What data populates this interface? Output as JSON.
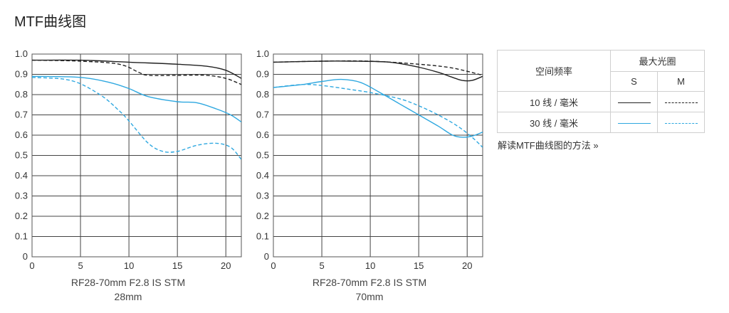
{
  "page": {
    "title": "MTF曲线图"
  },
  "colors": {
    "line_10": "#222222",
    "line_30": "#2fa8e0",
    "frame": "#555555",
    "grid": "#444444"
  },
  "legend": {
    "spatial_frequency_label": "空间频率",
    "aperture_label": "最大光圈",
    "col_s": "S",
    "col_m": "M",
    "row_10": "10 线 / 毫米",
    "row_30": "30 线 / 毫米"
  },
  "help_link": "解读MTF曲线图的方法 »",
  "chart_data": [
    {
      "type": "line",
      "caption_line1": "RF28-70mm F2.8 IS STM",
      "caption_line2": "28mm",
      "xlim": [
        0,
        21.6
      ],
      "ylim": [
        0,
        1.0
      ],
      "x_ticks": [
        0,
        5,
        10,
        15,
        20
      ],
      "y_ticks": [
        "0",
        "0.1",
        "0.2",
        "0.3",
        "0.4",
        "0.5",
        "0.6",
        "0.7",
        "0.8",
        "0.9",
        "1.0"
      ],
      "grid": true,
      "series": [
        {
          "key": "10S",
          "freq": 10,
          "orientation": "S",
          "points": [
            [
              0,
              0.97
            ],
            [
              5,
              0.97
            ],
            [
              10,
              0.96
            ],
            [
              15,
              0.95
            ],
            [
              18,
              0.94
            ],
            [
              20,
              0.92
            ],
            [
              21.6,
              0.88
            ]
          ]
        },
        {
          "key": "10M",
          "freq": 10,
          "orientation": "M",
          "points": [
            [
              0,
              0.97
            ],
            [
              5,
              0.965
            ],
            [
              9,
              0.95
            ],
            [
              11,
              0.91
            ],
            [
              12,
              0.895
            ],
            [
              15,
              0.895
            ],
            [
              18,
              0.895
            ],
            [
              20,
              0.88
            ],
            [
              21.6,
              0.85
            ]
          ]
        },
        {
          "key": "30S",
          "freq": 30,
          "orientation": "S",
          "points": [
            [
              0,
              0.89
            ],
            [
              5,
              0.885
            ],
            [
              8,
              0.86
            ],
            [
              10,
              0.83
            ],
            [
              12,
              0.79
            ],
            [
              15,
              0.765
            ],
            [
              17,
              0.76
            ],
            [
              19,
              0.73
            ],
            [
              20.5,
              0.7
            ],
            [
              21.6,
              0.665
            ]
          ]
        },
        {
          "key": "30M",
          "freq": 30,
          "orientation": "M",
          "points": [
            [
              0,
              0.885
            ],
            [
              4,
              0.87
            ],
            [
              7,
              0.8
            ],
            [
              9,
              0.72
            ],
            [
              10,
              0.67
            ],
            [
              12,
              0.56
            ],
            [
              13.5,
              0.52
            ],
            [
              15,
              0.52
            ],
            [
              17,
              0.55
            ],
            [
              19,
              0.56
            ],
            [
              20.5,
              0.54
            ],
            [
              21.6,
              0.48
            ]
          ]
        }
      ]
    },
    {
      "type": "line",
      "caption_line1": "RF28-70mm F2.8 IS STM",
      "caption_line2": "70mm",
      "xlim": [
        0,
        21.6
      ],
      "ylim": [
        0,
        1.0
      ],
      "x_ticks": [
        0,
        5,
        10,
        15,
        20
      ],
      "y_ticks": [
        "0",
        "0.1",
        "0.2",
        "0.3",
        "0.4",
        "0.5",
        "0.6",
        "0.7",
        "0.8",
        "0.9",
        "1.0"
      ],
      "grid": true,
      "series": [
        {
          "key": "10S",
          "freq": 10,
          "orientation": "S",
          "points": [
            [
              0,
              0.96
            ],
            [
              5,
              0.965
            ],
            [
              8,
              0.965
            ],
            [
              12,
              0.96
            ],
            [
              15,
              0.935
            ],
            [
              17,
              0.91
            ],
            [
              18.5,
              0.885
            ],
            [
              19.5,
              0.87
            ],
            [
              20.5,
              0.87
            ],
            [
              21.6,
              0.89
            ]
          ]
        },
        {
          "key": "10M",
          "freq": 10,
          "orientation": "M",
          "points": [
            [
              0,
              0.96
            ],
            [
              5,
              0.965
            ],
            [
              10,
              0.965
            ],
            [
              15,
              0.95
            ],
            [
              18,
              0.935
            ],
            [
              20,
              0.915
            ],
            [
              21.6,
              0.895
            ]
          ]
        },
        {
          "key": "30S",
          "freq": 30,
          "orientation": "S",
          "points": [
            [
              0,
              0.835
            ],
            [
              3,
              0.85
            ],
            [
              5,
              0.865
            ],
            [
              7,
              0.875
            ],
            [
              9,
              0.86
            ],
            [
              11,
              0.81
            ],
            [
              13,
              0.755
            ],
            [
              15,
              0.7
            ],
            [
              17,
              0.645
            ],
            [
              18.5,
              0.6
            ],
            [
              19.5,
              0.59
            ],
            [
              20.5,
              0.595
            ],
            [
              21.6,
              0.615
            ]
          ]
        },
        {
          "key": "30M",
          "freq": 30,
          "orientation": "M",
          "points": [
            [
              0,
              0.835
            ],
            [
              3,
              0.85
            ],
            [
              5,
              0.845
            ],
            [
              8,
              0.825
            ],
            [
              10,
              0.81
            ],
            [
              13,
              0.78
            ],
            [
              15,
              0.745
            ],
            [
              17,
              0.7
            ],
            [
              19,
              0.645
            ],
            [
              20.5,
              0.59
            ],
            [
              21.6,
              0.54
            ]
          ]
        }
      ]
    }
  ]
}
